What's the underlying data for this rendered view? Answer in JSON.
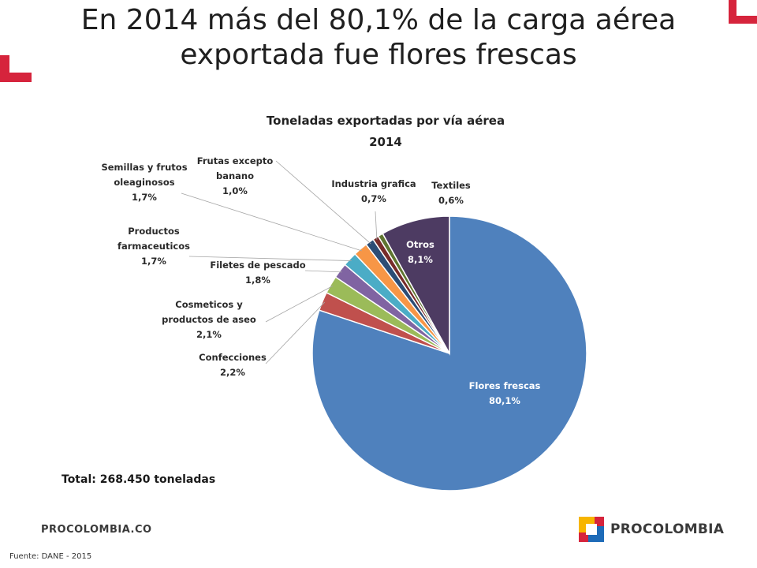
{
  "slide": {
    "title_line1": "En 2014 más del 80,1% de la carga aérea",
    "title_line2": "exportada fue flores frescas",
    "total": "Total: 268.450 toneladas",
    "website": "PROCOLOMBIA.CO",
    "brand_name": "PROCOLOMBIA",
    "source": "Fuente: DANE - 2015",
    "accent_color": "#d6243c"
  },
  "chart_data": {
    "type": "pie",
    "title": "Toneladas exportadas por vía aérea",
    "subtitle": "2014",
    "slices": [
      {
        "label": "Flores frescas",
        "value": 80.1,
        "pct_label": "80,1%",
        "color": "#4f81bd"
      },
      {
        "label": "Confecciones",
        "value": 2.2,
        "pct_label": "2,2%",
        "color": "#c0504d"
      },
      {
        "label": "Cosmeticos y productos de aseo",
        "value": 2.1,
        "pct_label": "2,1%",
        "color": "#9bbb59"
      },
      {
        "label": "Filetes de pescado",
        "value": 1.8,
        "pct_label": "1,8%",
        "color": "#8064a2"
      },
      {
        "label": "Productos farmaceuticos",
        "value": 1.7,
        "pct_label": "1,7%",
        "color": "#4bacc6"
      },
      {
        "label": "Semillas y frutos oleaginosos",
        "value": 1.7,
        "pct_label": "1,7%",
        "color": "#f79646"
      },
      {
        "label": "Frutas excepto banano",
        "value": 1.0,
        "pct_label": "1,0%",
        "color": "#2c4d75"
      },
      {
        "label": "Industria grafica",
        "value": 0.7,
        "pct_label": "0,7%",
        "color": "#772c2a"
      },
      {
        "label": "Textiles",
        "value": 0.6,
        "pct_label": "0,6%",
        "color": "#5f7530"
      },
      {
        "label": "Otros",
        "value": 8.1,
        "pct_label": "8,1%",
        "color": "#4d3b62"
      }
    ],
    "legend": "none"
  }
}
